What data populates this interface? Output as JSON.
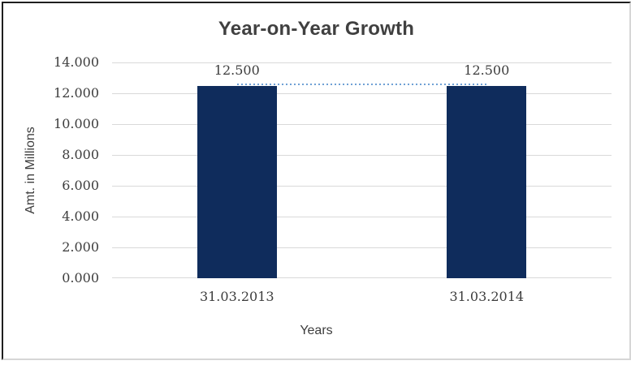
{
  "chart_data": {
    "type": "bar",
    "title": "Year-on-Year Growth",
    "categories": [
      "31.03.2013",
      "31.03.2014"
    ],
    "values": [
      12.5,
      12.5
    ],
    "data_labels": [
      "12.500",
      "12.500"
    ],
    "xlabel": "Years",
    "ylabel": "Amt. in Millions",
    "ylim": [
      0,
      14
    ],
    "ytick_step": 2,
    "ytick_labels": [
      "14.000",
      "12.000",
      "10.000",
      "8.000",
      "6.000",
      "4.000",
      "2.000",
      "0.000"
    ],
    "grid": true,
    "legend": false,
    "trendline": {
      "style": "dotted",
      "from_category": "31.03.2013",
      "to_category": "31.03.2014",
      "value": 12.5
    },
    "colors": {
      "bar": "#0F2C5C",
      "trendline": "#6FA0D5",
      "gridline": "#D9D9D9",
      "text": "#3D3D3D",
      "title_text": "#404040",
      "border_dark": "#1E1E1E",
      "border_light": "#D6D6D6"
    }
  }
}
